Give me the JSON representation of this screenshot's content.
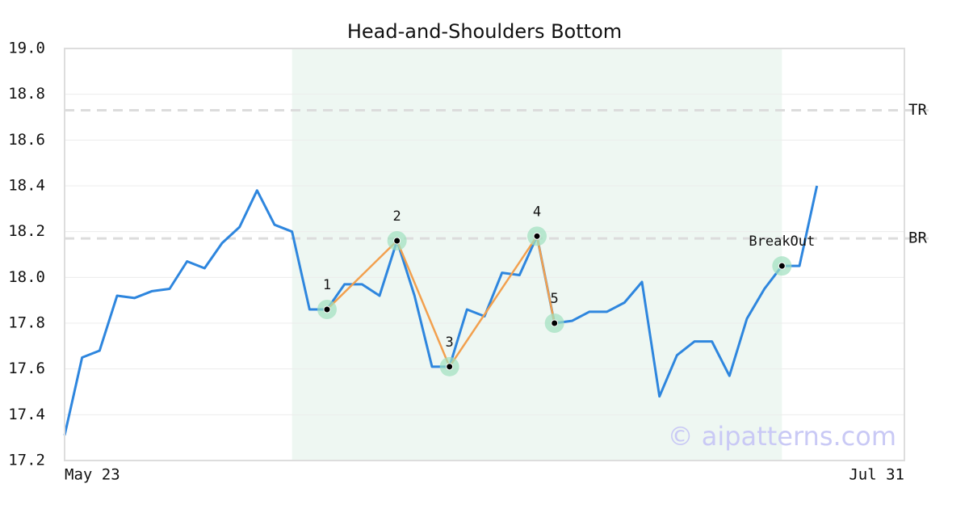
{
  "chart_data": {
    "type": "line",
    "title": "Head-and-Shoulders Bottom",
    "categories": [
      "May 23",
      null,
      null,
      null,
      null,
      null,
      null,
      null,
      null,
      null,
      null,
      null,
      null,
      null,
      null,
      null,
      null,
      null,
      null,
      null,
      null,
      null,
      null,
      null,
      null,
      null,
      null,
      null,
      null,
      null,
      null,
      null,
      null,
      null,
      null,
      null,
      null,
      null,
      null,
      null,
      null,
      null,
      null,
      null,
      null,
      null,
      null,
      null,
      "Jul 31"
    ],
    "series": [
      {
        "color": "#2e86de",
        "values": [
          17.31,
          17.65,
          17.68,
          17.92,
          17.91,
          17.94,
          17.95,
          18.07,
          18.04,
          18.15,
          18.22,
          18.38,
          18.23,
          18.2,
          17.86,
          17.86,
          17.97,
          17.97,
          17.92,
          18.16,
          17.92,
          17.61,
          17.61,
          17.86,
          17.83,
          18.02,
          18.01,
          18.18,
          17.8,
          17.81,
          17.85,
          17.85,
          17.89,
          17.98,
          17.48,
          17.66,
          17.72,
          17.72,
          17.57,
          17.82,
          17.95,
          18.05,
          18.05,
          18.4,
          null,
          null,
          null,
          null,
          null
        ]
      }
    ],
    "ylim": [
      17.2,
      19.0
    ],
    "yticks": [
      17.2,
      17.4,
      17.6,
      17.8,
      {
        "value": 18.0,
        "label": "18.0"
      },
      18.2,
      18.4,
      18.6,
      18.8,
      {
        "value": 19.0,
        "label": "19.0"
      }
    ],
    "grid": true,
    "highlight_range": [
      13,
      41
    ],
    "levels": [
      {
        "label": "TR",
        "value": 18.73
      },
      {
        "label": "BR",
        "value": 18.17
      }
    ],
    "pattern": {
      "color": "#f2a04e",
      "points": [
        {
          "x": 15,
          "value": 17.86,
          "label": "1"
        },
        {
          "x": 19,
          "value": 18.16,
          "label": "2"
        },
        {
          "x": 22,
          "value": 17.61,
          "label": "3"
        },
        {
          "x": 27,
          "value": 18.18,
          "label": "4"
        },
        {
          "x": 28,
          "value": 17.8,
          "label": "5"
        }
      ]
    },
    "breakout": {
      "x": 41,
      "value": 18.05,
      "label": "BreakOut"
    },
    "watermark": "© aipatterns.com"
  }
}
